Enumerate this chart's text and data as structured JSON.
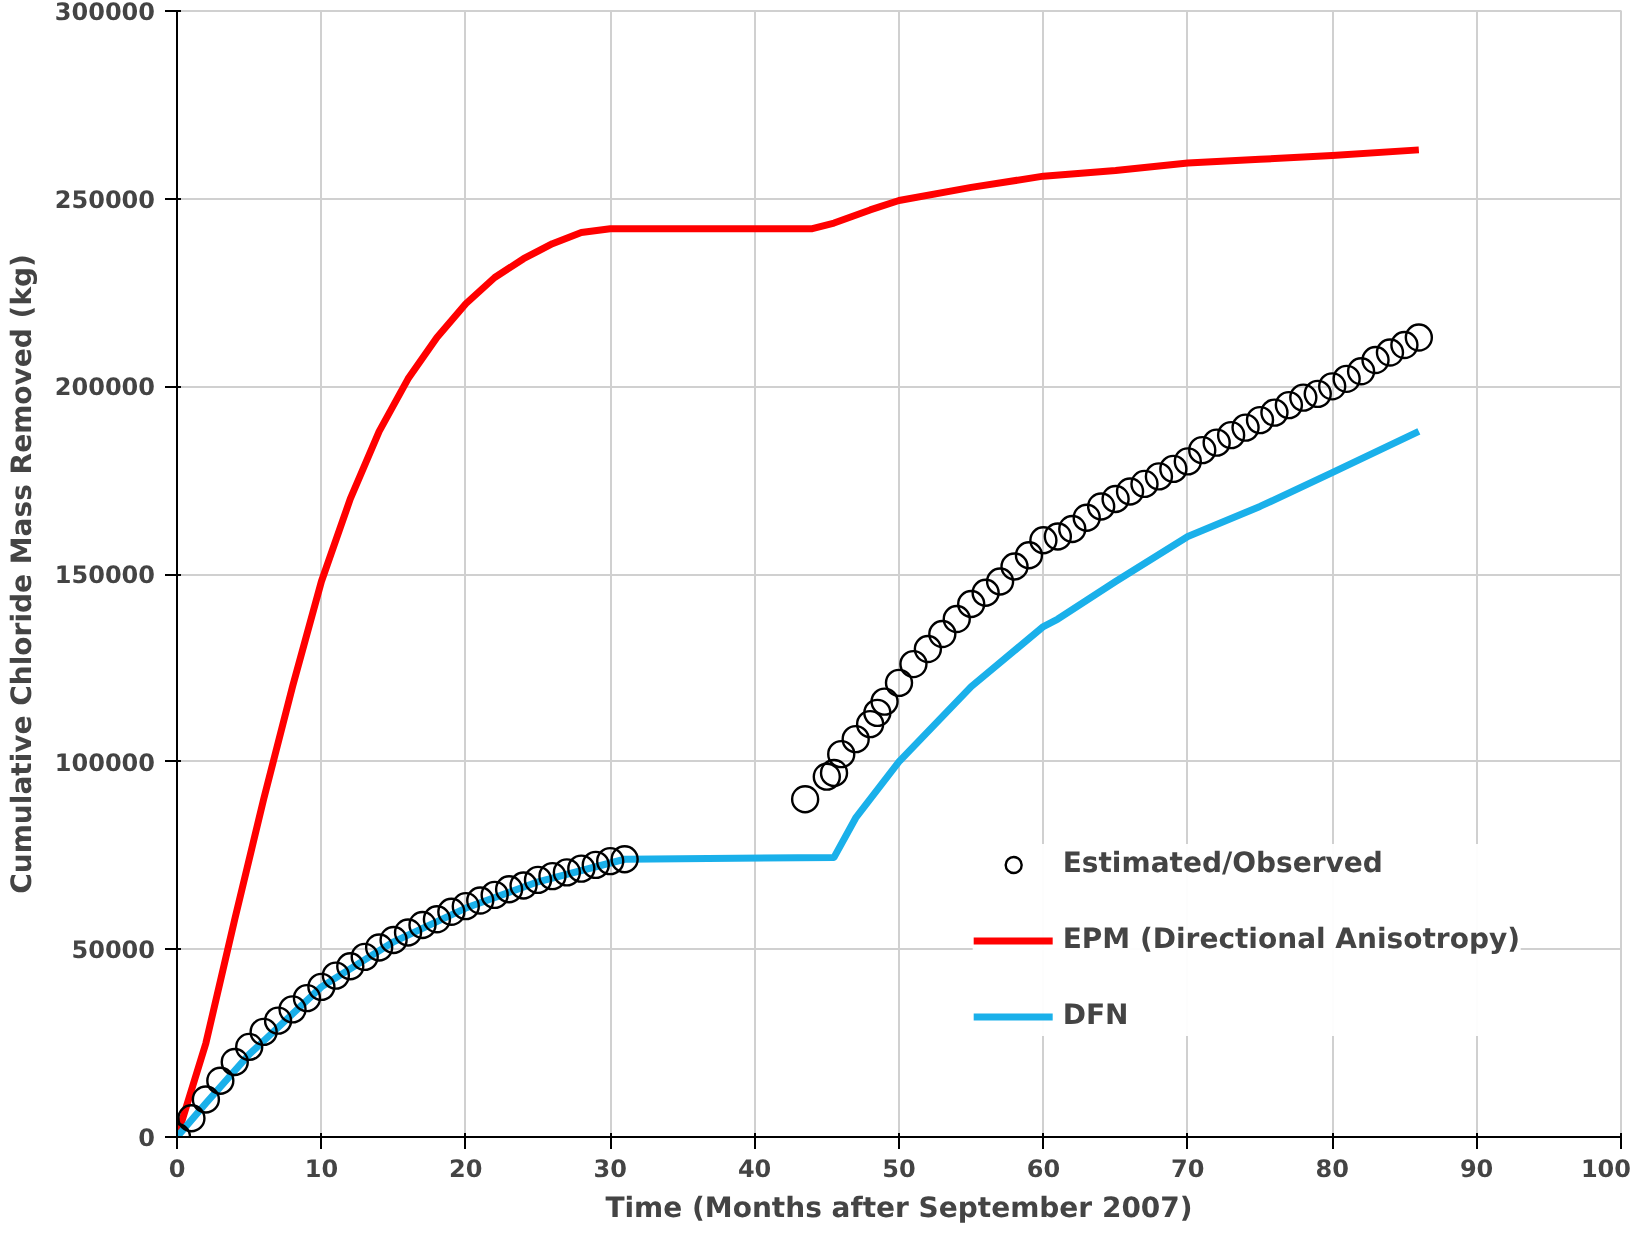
{
  "chart_data": {
    "type": "line",
    "xlabel": "Time (Months after September 2007)",
    "ylabel": "Cumulative Chloride Mass Removed (kg)",
    "xlim": [
      0,
      100
    ],
    "xticks": [
      0,
      10,
      20,
      30,
      40,
      50,
      60,
      70,
      80,
      90,
      100
    ],
    "ylim": [
      0,
      300000
    ],
    "yticks": [
      0,
      50000,
      100000,
      150000,
      200000,
      250000,
      300000
    ],
    "grid": true,
    "legend": "bottom right",
    "series": [
      {
        "name": "Estimated/Observed",
        "type": "scatter",
        "marker": "circle",
        "color": "#000000",
        "x": [
          0,
          1,
          2,
          3,
          4,
          5,
          6,
          7,
          8,
          9,
          10,
          11,
          12,
          13,
          14,
          15,
          16,
          17,
          18,
          19,
          20,
          21,
          22,
          23,
          24,
          25,
          26,
          27,
          28,
          29,
          30,
          31,
          43.5,
          45,
          45.5,
          46,
          47,
          48,
          48.5,
          49,
          50,
          51,
          52,
          53,
          54,
          55,
          56,
          57,
          58,
          59,
          60,
          61,
          62,
          63,
          64,
          65,
          66,
          67,
          68,
          69,
          70,
          71,
          72,
          73,
          74,
          75,
          76,
          77,
          78,
          79,
          80,
          81,
          82,
          83,
          84,
          85,
          86
        ],
        "values": [
          0,
          5000,
          10000,
          15000,
          20000,
          24000,
          28000,
          31000,
          34000,
          37000,
          40000,
          43000,
          45500,
          48000,
          50500,
          52500,
          54500,
          56500,
          58000,
          60000,
          61500,
          63000,
          64500,
          66000,
          67000,
          68500,
          69500,
          70500,
          71500,
          72500,
          73500,
          74000,
          90000,
          96000,
          97000,
          102000,
          106000,
          110000,
          113000,
          116000,
          121000,
          126000,
          130000,
          134000,
          138000,
          142000,
          145000,
          148000,
          152000,
          155000,
          159000,
          160000,
          162000,
          165000,
          168000,
          170000,
          172000,
          174000,
          176000,
          178000,
          180000,
          183000,
          185000,
          187000,
          189000,
          191000,
          193000,
          195000,
          197000,
          198000,
          200000,
          202000,
          204000,
          207000,
          209000,
          211000,
          213000
        ]
      },
      {
        "name": "EPM (Directional Anisotropy)",
        "color": "#ff0000",
        "x": [
          0,
          2,
          4,
          6,
          8,
          10,
          12,
          14,
          16,
          18,
          20,
          22,
          24,
          26,
          28,
          30,
          44,
          45.5,
          48,
          50,
          55,
          60,
          65,
          70,
          75,
          80,
          86
        ],
        "values": [
          0,
          25000,
          58000,
          90000,
          120000,
          148000,
          170000,
          188000,
          202000,
          213000,
          222000,
          229000,
          234000,
          238000,
          241000,
          242000,
          242000,
          243500,
          247000,
          249500,
          253000,
          256000,
          257500,
          259500,
          260500,
          261500,
          263000
        ]
      },
      {
        "name": "DFN",
        "color": "#1ab0ea",
        "x": [
          0,
          2,
          5,
          10,
          15,
          20,
          25,
          30,
          31,
          45.5,
          47,
          50,
          55,
          60,
          61,
          63,
          65,
          70,
          75,
          80,
          86
        ],
        "values": [
          0,
          9000,
          22000,
          40000,
          52000,
          61000,
          68000,
          73000,
          74000,
          74500,
          85000,
          100000,
          120000,
          136000,
          138000,
          143000,
          148000,
          160000,
          168000,
          177000,
          188000
        ]
      }
    ]
  }
}
